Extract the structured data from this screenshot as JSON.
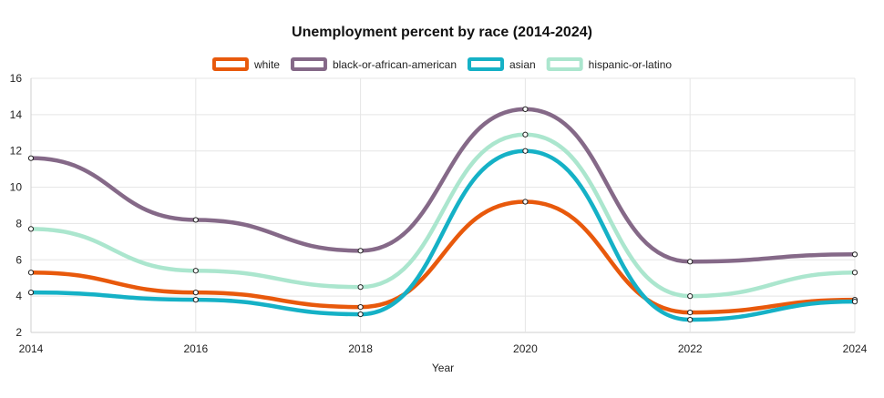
{
  "chart_data": {
    "type": "line",
    "title": "Unemployment percent by race (2014-2024)",
    "xlabel": "Year",
    "ylabel": "",
    "x": [
      2014,
      2016,
      2018,
      2020,
      2022,
      2024
    ],
    "xlim": [
      2014,
      2024
    ],
    "ylim": [
      2,
      16
    ],
    "yticks": [
      2,
      4,
      6,
      8,
      10,
      12,
      14,
      16
    ],
    "xticks": [
      2014,
      2016,
      2018,
      2020,
      2022,
      2024
    ],
    "grid": true,
    "legend_position": "top",
    "series": [
      {
        "name": "white",
        "color": "#e8590c",
        "values": [
          5.3,
          4.2,
          3.4,
          9.2,
          3.1,
          3.8
        ]
      },
      {
        "name": "black-or-african-american",
        "color": "#856988",
        "values": [
          11.6,
          8.2,
          6.5,
          14.3,
          5.9,
          6.3
        ]
      },
      {
        "name": "asian",
        "color": "#15b1c6",
        "values": [
          4.2,
          3.8,
          3.0,
          12.0,
          2.7,
          3.7
        ]
      },
      {
        "name": "hispanic-or-latino",
        "color": "#abe6ce",
        "values": [
          7.7,
          5.4,
          4.5,
          12.9,
          4.0,
          5.3
        ]
      }
    ]
  }
}
